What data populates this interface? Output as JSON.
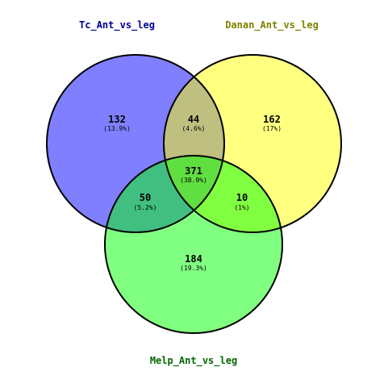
{
  "sets": [
    {
      "name": "Tc_Ant_vs_leg",
      "color": "#000099"
    },
    {
      "name": "Danan_Ant_vs_leg",
      "color": "#808000"
    },
    {
      "name": "Melp_Ant_vs_leg",
      "color": "#006600"
    }
  ],
  "regions": {
    "a_only": {
      "count": "132",
      "pct": "(13.9%)"
    },
    "ab": {
      "count": "44",
      "pct": "(4.6%)"
    },
    "b_only": {
      "count": "162",
      "pct": "(17%)"
    },
    "abc": {
      "count": "371",
      "pct": "(38.9%)"
    },
    "ac": {
      "count": "50",
      "pct": "(5.2%)"
    },
    "bc": {
      "count": "10",
      "pct": "(1%)"
    },
    "c_only": {
      "count": "184",
      "pct": "(19.3%)"
    }
  },
  "colors": {
    "a_only": "#7f7fff",
    "b_only": "#ffff80",
    "c_only": "#80ff80",
    "ab": "#bfbf80",
    "ac": "#40bf80",
    "bc": "#80ff40",
    "abc": "#60df40"
  }
}
